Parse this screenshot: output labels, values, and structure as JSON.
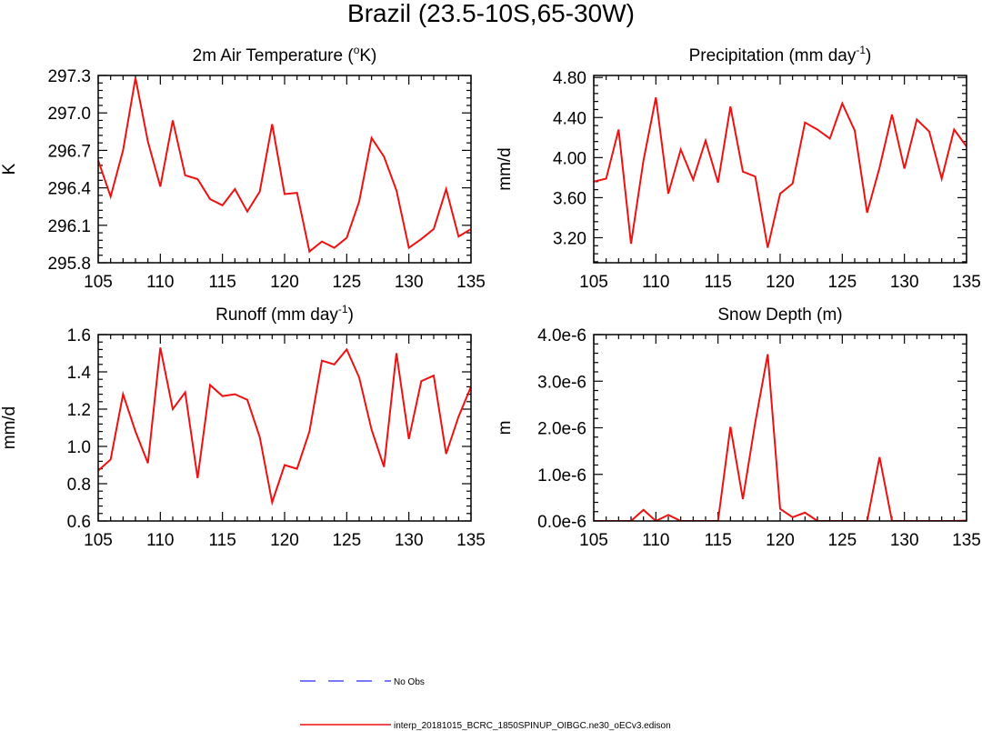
{
  "figure": {
    "title": "Brazil (23.5-10S,65-30W)"
  },
  "legend": {
    "items": [
      {
        "label": "No Obs",
        "color": "#4a4aff",
        "style": "dashed"
      },
      {
        "label": "interp_20181015_BCRC_1850SPINUP_OIBGC.ne30_oECv3.edison",
        "color": "#ee1111",
        "style": "solid"
      }
    ]
  },
  "chart_data": [
    {
      "type": "line",
      "title_parts": {
        "base": "2m Air Temperature (",
        "sup": "o",
        "tail": "K)"
      },
      "ylabel": "K",
      "xlim": [
        105,
        135
      ],
      "ylim": [
        295.8,
        297.3
      ],
      "xticks": [
        105,
        110,
        115,
        120,
        125,
        130,
        135
      ],
      "yticks": [
        295.8,
        296.1,
        296.4,
        296.7,
        297.0,
        297.3
      ],
      "ytick_labels": [
        "295.8",
        "296.1",
        "296.4",
        "296.7",
        "297.0",
        "297.3"
      ],
      "series": [
        {
          "color": "#ee1111",
          "x": [
            105,
            106,
            107,
            108,
            109,
            110,
            111,
            112,
            113,
            114,
            115,
            116,
            117,
            118,
            119,
            120,
            121,
            122,
            123,
            124,
            125,
            126,
            127,
            128,
            129,
            130,
            131,
            132,
            133,
            134,
            135
          ],
          "values": [
            296.62,
            296.33,
            296.7,
            297.28,
            296.77,
            296.41,
            296.94,
            296.5,
            296.47,
            296.31,
            296.26,
            296.39,
            296.21,
            296.37,
            296.91,
            296.35,
            296.36,
            295.89,
            295.97,
            295.92,
            296.0,
            296.29,
            296.8,
            296.65,
            296.38,
            295.92,
            295.99,
            296.07,
            296.39,
            296.01,
            296.07
          ]
        }
      ]
    },
    {
      "type": "line",
      "title_parts": {
        "base": "Precipitation (mm day",
        "sup": "-1",
        "tail": ")"
      },
      "ylabel": "mm/d",
      "xlim": [
        105,
        135
      ],
      "ylim": [
        2.95,
        4.82
      ],
      "xticks": [
        105,
        110,
        115,
        120,
        125,
        130,
        135
      ],
      "yticks": [
        3.2,
        3.6,
        4.0,
        4.4,
        4.8
      ],
      "ytick_labels": [
        "3.20",
        "3.60",
        "4.00",
        "4.40",
        "4.80"
      ],
      "series": [
        {
          "color": "#ee1111",
          "x": [
            105,
            106,
            107,
            108,
            109,
            110,
            111,
            112,
            113,
            114,
            115,
            116,
            117,
            118,
            119,
            120,
            121,
            122,
            123,
            124,
            125,
            126,
            127,
            128,
            129,
            130,
            131,
            132,
            133,
            134,
            135
          ],
          "values": [
            3.76,
            3.79,
            4.28,
            3.14,
            3.97,
            4.6,
            3.64,
            4.08,
            3.78,
            4.17,
            3.75,
            4.51,
            3.86,
            3.81,
            3.1,
            3.64,
            3.74,
            4.35,
            4.28,
            4.19,
            4.54,
            4.27,
            3.45,
            3.9,
            4.43,
            3.89,
            4.38,
            4.26,
            3.79,
            4.28,
            4.11
          ]
        }
      ]
    },
    {
      "type": "line",
      "title_parts": {
        "base": "Runoff (mm day",
        "sup": "-1",
        "tail": ")"
      },
      "ylabel": "mm/d",
      "xlim": [
        105,
        135
      ],
      "ylim": [
        0.6,
        1.6
      ],
      "xticks": [
        105,
        110,
        115,
        120,
        125,
        130,
        135
      ],
      "yticks": [
        0.6,
        0.8,
        1.0,
        1.2,
        1.4,
        1.6
      ],
      "ytick_labels": [
        "0.6",
        "0.8",
        "1.0",
        "1.2",
        "1.4",
        "1.6"
      ],
      "series": [
        {
          "color": "#ee1111",
          "x": [
            105,
            106,
            107,
            108,
            109,
            110,
            111,
            112,
            113,
            114,
            115,
            116,
            117,
            118,
            119,
            120,
            121,
            122,
            123,
            124,
            125,
            126,
            127,
            128,
            129,
            130,
            131,
            132,
            133,
            134,
            135
          ],
          "values": [
            0.87,
            0.93,
            1.28,
            1.08,
            0.91,
            1.53,
            1.2,
            1.29,
            0.83,
            1.33,
            1.27,
            1.28,
            1.25,
            1.05,
            0.7,
            0.9,
            0.88,
            1.08,
            1.46,
            1.44,
            1.52,
            1.37,
            1.09,
            0.89,
            1.5,
            1.04,
            1.35,
            1.38,
            0.96,
            1.16,
            1.32
          ]
        }
      ]
    },
    {
      "type": "line",
      "title_parts": {
        "base": "Snow Depth (m)",
        "sup": "",
        "tail": ""
      },
      "ylabel": "m",
      "xlim": [
        105,
        135
      ],
      "ylim": [
        0,
        4e-06
      ],
      "xticks": [
        105,
        110,
        115,
        120,
        125,
        130,
        135
      ],
      "yticks": [
        0,
        1e-06,
        2e-06,
        3e-06,
        4e-06
      ],
      "ytick_labels": [
        "0.0e-6",
        "1.0e-6",
        "2.0e-6",
        "3.0e-6",
        "4.0e-6"
      ],
      "series": [
        {
          "color": "#ee1111",
          "x": [
            105,
            106,
            107,
            108,
            109,
            110,
            111,
            112,
            113,
            114,
            115,
            116,
            117,
            118,
            119,
            120,
            121,
            122,
            123,
            124,
            125,
            126,
            127,
            128,
            129,
            130,
            131,
            132,
            133,
            134,
            135
          ],
          "values": [
            0,
            0,
            0,
            0,
            2.4e-07,
            0,
            1.3e-07,
            0,
            0,
            0,
            0,
            2.02e-06,
            4.7e-07,
            2.12e-06,
            3.58e-06,
            2.6e-07,
            8e-08,
            1.8e-07,
            0,
            0,
            0,
            0,
            0,
            1.37e-06,
            0,
            0,
            0,
            0,
            0,
            0,
            1e-08
          ]
        }
      ]
    }
  ]
}
